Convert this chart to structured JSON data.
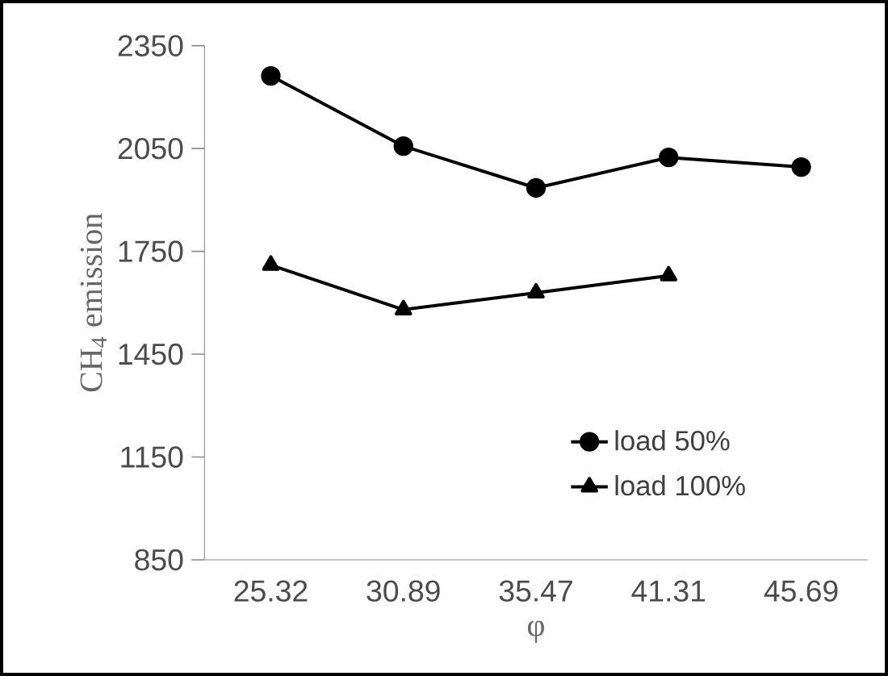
{
  "chart_data": {
    "type": "line",
    "xlabel": "φ",
    "ylabel": "CH$_{4}$ emission",
    "categories": [
      "25.32",
      "30.89",
      "35.47",
      "41.31",
      "45.69"
    ],
    "series": [
      {
        "name": "load 50%",
        "color": "#000000",
        "marker": "circle",
        "values": [
          2262,
          2057,
          1935,
          2024,
          1996
        ]
      },
      {
        "name": "load 100%",
        "color": "#000000",
        "marker": "triangle",
        "values": [
          1710,
          1580,
          1629,
          1679,
          null
        ]
      }
    ],
    "ylim": [
      850,
      2350
    ],
    "yticks": [
      850,
      1150,
      1450,
      1750,
      2050,
      2350
    ],
    "grid": false,
    "legend": "bottom right",
    "line_style": "solid"
  }
}
